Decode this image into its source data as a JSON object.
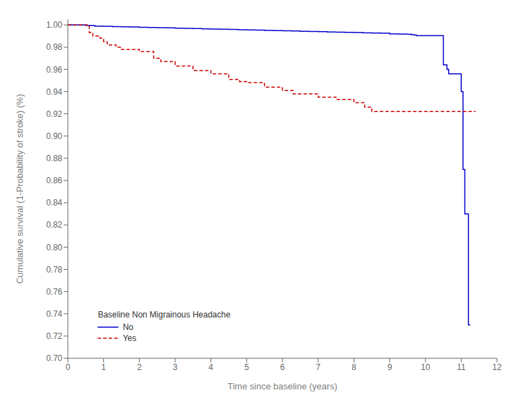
{
  "chart_data": {
    "type": "step",
    "xlabel": "Time since baseline (years)",
    "ylabel": "Cumulative survival (1-Probability of stroke) (%)",
    "xlim": [
      0,
      12
    ],
    "ylim": [
      0.7,
      1.005
    ],
    "xticks": [
      0,
      1,
      2,
      3,
      4,
      5,
      6,
      7,
      8,
      9,
      10,
      11,
      12
    ],
    "yticks": [
      {
        "value": 0.7,
        "label": "0.70"
      },
      0.72,
      0.74,
      0.76,
      0.78,
      {
        "value": 0.8,
        "label": "0.80"
      },
      0.82,
      0.84,
      0.86,
      0.88,
      {
        "value": 0.9,
        "label": "0.90"
      },
      0.92,
      0.94,
      0.96,
      0.98,
      {
        "value": 1.0,
        "label": "1.00"
      }
    ],
    "grid": false,
    "legend": "lower left",
    "legend_title": "Baseline Non Migrainous Headache",
    "series": [
      {
        "name": "No",
        "color": "#0000cd",
        "line_style": "solid",
        "x": [
          0,
          0.25,
          0.5,
          0.75,
          1.0,
          1.25,
          1.5,
          1.75,
          2.0,
          2.25,
          2.5,
          2.75,
          3.0,
          3.25,
          3.5,
          3.75,
          4.0,
          4.25,
          4.5,
          4.75,
          5.0,
          5.25,
          5.5,
          5.75,
          6.0,
          6.25,
          6.5,
          6.75,
          7.0,
          7.25,
          7.5,
          7.75,
          8.0,
          8.25,
          8.5,
          8.75,
          9.0,
          9.25,
          9.5,
          9.6,
          9.7,
          9.75,
          10.5,
          10.6,
          10.65,
          11.0,
          11.05,
          11.1,
          11.2,
          11.25
        ],
        "values": [
          1.0,
          1.0,
          0.9995,
          0.999,
          0.9988,
          0.9985,
          0.9983,
          0.9981,
          0.9979,
          0.9977,
          0.9975,
          0.9973,
          0.9971,
          0.9969,
          0.9967,
          0.9965,
          0.9963,
          0.9961,
          0.9959,
          0.9957,
          0.9955,
          0.9953,
          0.9951,
          0.9949,
          0.9947,
          0.9945,
          0.9943,
          0.9941,
          0.9939,
          0.9937,
          0.9935,
          0.9933,
          0.9931,
          0.9929,
          0.9927,
          0.9925,
          0.992,
          0.9918,
          0.9916,
          0.9912,
          0.9908,
          0.9904,
          0.964,
          0.96,
          0.956,
          0.94,
          0.87,
          0.83,
          0.73,
          0.73
        ]
      },
      {
        "name": "Yes",
        "color": "#cc0000",
        "line_style": "dashed",
        "x": [
          0,
          0.45,
          0.6,
          0.7,
          0.9,
          1.0,
          1.1,
          1.35,
          1.5,
          2.0,
          2.4,
          2.6,
          3.0,
          3.5,
          4.0,
          4.5,
          4.8,
          5.0,
          5.5,
          6.0,
          6.3,
          7.0,
          7.5,
          8.0,
          8.3,
          8.5,
          9.0,
          9.5,
          10.0,
          10.5,
          11.0,
          11.4
        ],
        "values": [
          1.0,
          1.0,
          0.993,
          0.99,
          0.988,
          0.985,
          0.982,
          0.98,
          0.978,
          0.976,
          0.97,
          0.967,
          0.963,
          0.959,
          0.956,
          0.951,
          0.949,
          0.948,
          0.944,
          0.941,
          0.938,
          0.935,
          0.933,
          0.93,
          0.926,
          0.922,
          0.922,
          0.922,
          0.922,
          0.922,
          0.922,
          0.922
        ]
      }
    ]
  }
}
